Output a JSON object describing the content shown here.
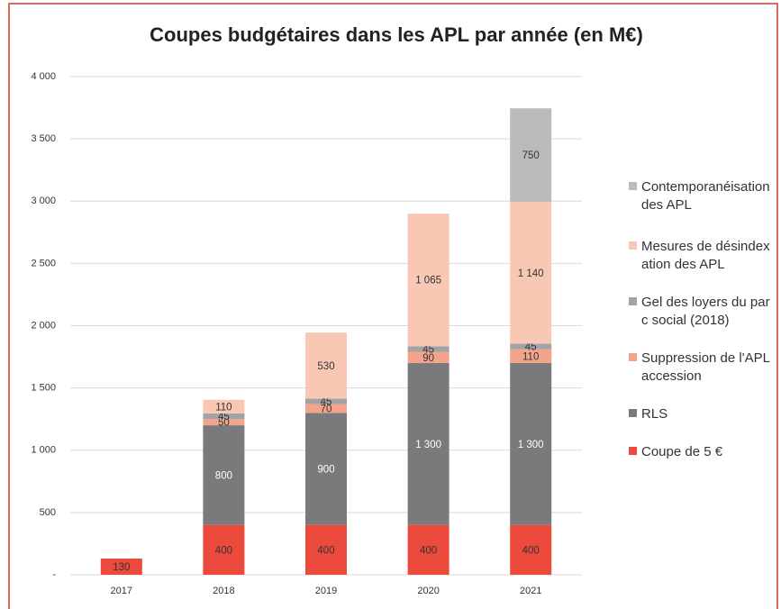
{
  "chart_data": {
    "type": "stacked_bar",
    "title": "Coupes budgétaires dans les APL par année (en M€)",
    "categories": [
      "2017",
      "2018",
      "2019",
      "2020",
      "2021"
    ],
    "series": [
      {
        "name": "Coupe de 5 €",
        "color": "#ec4a3c",
        "values": [
          130,
          400,
          400,
          400,
          400
        ]
      },
      {
        "name": "RLS",
        "color": "#7a7a7c",
        "values": [
          null,
          800,
          900,
          1300,
          1300
        ],
        "value_labels": [
          null,
          "800",
          "900",
          "1 300",
          "1 300"
        ]
      },
      {
        "name": "Suppression de l'APL accession",
        "color": "#f5a48c",
        "values": [
          null,
          50,
          70,
          90,
          110
        ]
      },
      {
        "name": "Gel des loyers du parc social (2018)",
        "color": "#a3a3a5",
        "values": [
          null,
          45,
          45,
          45,
          45
        ]
      },
      {
        "name": "Mesures de désindexation des APL",
        "color": "#f9c8b4",
        "values": [
          null,
          110,
          530,
          1065,
          1140
        ],
        "value_labels": [
          null,
          "110",
          "530",
          "1 065",
          "1 140"
        ]
      },
      {
        "name": "Contemporanéisation des APL",
        "color": "#bbbbbd",
        "values": [
          null,
          null,
          null,
          null,
          750
        ]
      }
    ],
    "ylim": [
      0,
      4000
    ],
    "yticks": [
      {
        "value": 0,
        "label": "-"
      },
      500,
      {
        "value": 1000,
        "label": "1 000"
      },
      {
        "value": 1500,
        "label": "1 500"
      },
      {
        "value": 2000,
        "label": "2 000"
      },
      {
        "value": 2500,
        "label": "2 500"
      },
      {
        "value": 3000,
        "label": "3 000"
      },
      {
        "value": 3500,
        "label": "3 500"
      },
      {
        "value": 4000,
        "label": "4 000"
      }
    ],
    "legend": "right"
  }
}
